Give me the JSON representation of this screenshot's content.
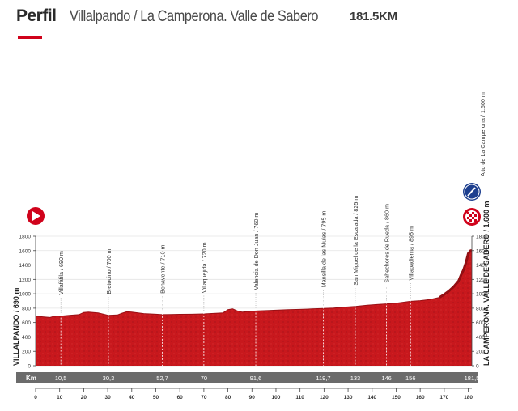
{
  "header": {
    "title": "Perfil",
    "route": "Villalpando / La Camperona. Valle de Sabero",
    "distance": "181.5KM"
  },
  "colors": {
    "accent": "#d0021b",
    "profile": "#c8181d",
    "profile_dark": "#8e0f12",
    "grid": "#e4e4e4",
    "kmbar": "#6b6b6b"
  },
  "icons": {
    "start": "start-flag-icon",
    "climb": "climb-category-badge-icon",
    "finish": "finish-checkered-icon"
  },
  "chart_data": {
    "type": "area",
    "title": "Perfil",
    "xlabel": "",
    "ylabel": "",
    "xlim": [
      0,
      181.5
    ],
    "ylim": [
      0,
      1800
    ],
    "x_ticks": [
      0,
      10,
      20,
      30,
      40,
      50,
      60,
      70,
      80,
      90,
      100,
      110,
      120,
      130,
      140,
      150,
      160,
      170,
      180
    ],
    "y_ticks": [
      0,
      200,
      400,
      600,
      800,
      1000,
      1200,
      1400,
      1600,
      1800
    ],
    "start": {
      "label": "VILLALPANDO / 690 m",
      "km": 0,
      "alt": 690
    },
    "finish": {
      "label": "LA CAMPERONA. VALLE DE SABERO / 1.600 m",
      "km": 181.5,
      "alt": 1600
    },
    "summit": {
      "label": "Alto de La Camperona / 1.600 m",
      "km": 181.5,
      "alt": 1600
    },
    "km_row_label": "Km",
    "waypoints": [
      {
        "name": "Villafáfila / 690 m",
        "km": 10.5,
        "km_label": "10,5"
      },
      {
        "name": "Bretocino / 700 m",
        "km": 30.3,
        "km_label": "30,3"
      },
      {
        "name": "Benavente / 710 m",
        "km": 52.7,
        "km_label": "52,7"
      },
      {
        "name": "Villaquejida / 720 m",
        "km": 70,
        "km_label": "70"
      },
      {
        "name": "Valencia de Don Juan / 760 m",
        "km": 91.6,
        "km_label": "91,6"
      },
      {
        "name": "Mansilla de las Mulas / 795 m",
        "km": 119.7,
        "km_label": "119,7"
      },
      {
        "name": "San Miguel de la Escalada / 825 m",
        "km": 133,
        "km_label": "133"
      },
      {
        "name": "Sahechores de Rueda / 860 m",
        "km": 146,
        "km_label": "146"
      },
      {
        "name": "Villapadierna / 895 m",
        "km": 156,
        "km_label": "156"
      },
      {
        "name": "",
        "km": 181.5,
        "km_label": "181,5"
      }
    ],
    "profile": {
      "x": [
        0,
        3,
        6,
        8,
        10.5,
        14,
        18,
        20,
        22,
        26,
        30.3,
        34,
        36,
        38,
        40,
        45,
        50,
        52.7,
        56,
        60,
        65,
        70,
        75,
        78,
        80,
        82,
        84,
        86,
        91.6,
        96,
        100,
        105,
        110,
        115,
        119.7,
        124,
        128,
        133,
        138,
        142,
        146,
        150,
        156,
        160,
        164,
        168,
        170,
        172,
        174,
        176,
        177,
        178,
        179,
        180,
        181,
        181.5
      ],
      "y": [
        690,
        680,
        670,
        690,
        690,
        700,
        710,
        740,
        745,
        735,
        700,
        705,
        730,
        750,
        745,
        725,
        715,
        710,
        712,
        714,
        716,
        720,
        728,
        735,
        780,
        790,
        760,
        745,
        760,
        766,
        772,
        778,
        783,
        790,
        795,
        802,
        812,
        825,
        840,
        850,
        860,
        868,
        895,
        905,
        920,
        950,
        990,
        1040,
        1100,
        1180,
        1260,
        1330,
        1430,
        1560,
        1600,
        1600
      ]
    }
  }
}
